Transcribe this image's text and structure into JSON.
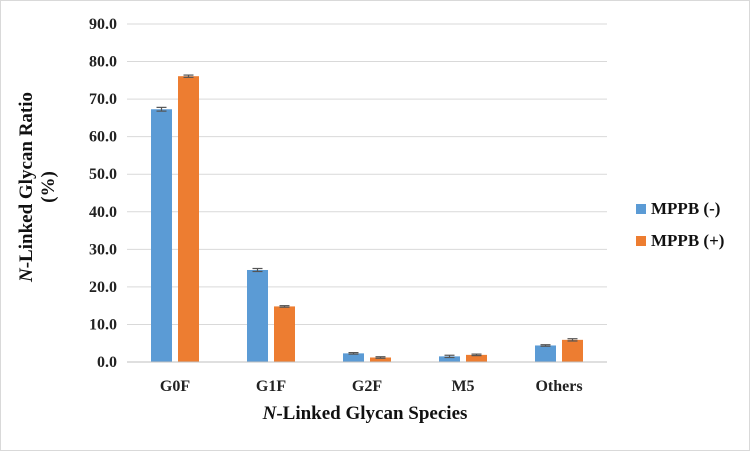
{
  "chart_data": {
    "type": "bar",
    "categories": [
      "G0F",
      "G1F",
      "G2F",
      "M5",
      "Others"
    ],
    "series": [
      {
        "name": "MPPB (-)",
        "color": "#5B9BD5",
        "values": [
          67.3,
          24.5,
          2.3,
          1.5,
          4.4
        ],
        "errors": [
          0.5,
          0.4,
          0.2,
          0.3,
          0.2
        ]
      },
      {
        "name": "MPPB (+)",
        "color": "#ED7D31",
        "values": [
          76.1,
          14.8,
          1.2,
          1.9,
          5.9
        ],
        "errors": [
          0.3,
          0.2,
          0.2,
          0.2,
          0.3
        ]
      }
    ],
    "ylim": [
      0,
      90
    ],
    "yticks": [
      "0.0",
      "10.0",
      "20.0",
      "30.0",
      "40.0",
      "50.0",
      "60.0",
      "70.0",
      "80.0",
      "90.0"
    ],
    "ylabel_italic": "N",
    "ylabel_line1": "-Linked Glycan Ratio",
    "ylabel_line2": "(%)",
    "xlabel_italic": "N",
    "xlabel": "-Linked Glycan Species",
    "grid": true,
    "legend_position": "right"
  }
}
